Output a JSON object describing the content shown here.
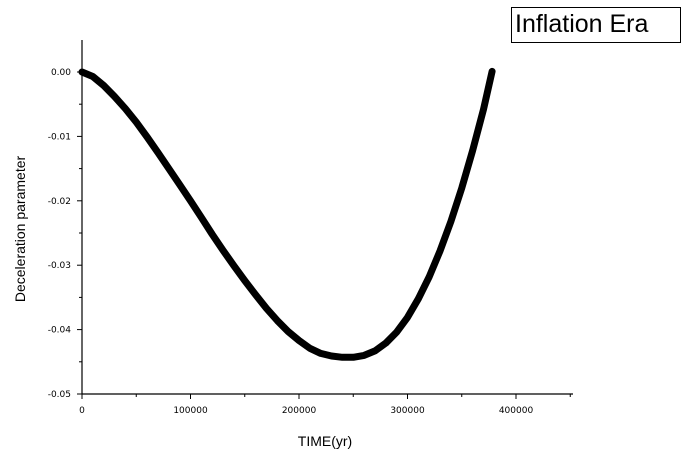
{
  "chart_data": {
    "type": "line",
    "title": "Inflation Era",
    "xlabel": "TIME(yr)",
    "ylabel": "Deceleration parameter",
    "xlim": [
      0,
      450000
    ],
    "ylim": [
      -0.05,
      0.005
    ],
    "x_ticks": [
      0,
      100000,
      200000,
      300000,
      400000
    ],
    "x_tick_labels": [
      "0",
      "100000",
      "200000",
      "300000",
      "400000"
    ],
    "y_ticks": [
      0.0,
      -0.01,
      -0.02,
      -0.03,
      -0.04,
      -0.05
    ],
    "y_tick_labels": [
      "0.00",
      "-0.01",
      "-0.02",
      "-0.03",
      "-0.04",
      "-0.05"
    ],
    "grid": false,
    "legend": "none",
    "series": [
      {
        "color": "#000000",
        "x": [
          0,
          10000,
          20000,
          30000,
          40000,
          50000,
          60000,
          70000,
          80000,
          90000,
          100000,
          110000,
          120000,
          130000,
          140000,
          150000,
          160000,
          170000,
          180000,
          190000,
          200000,
          210000,
          220000,
          230000,
          240000,
          250000,
          260000,
          270000,
          280000,
          290000,
          300000,
          310000,
          320000,
          330000,
          340000,
          350000,
          360000,
          370000,
          378000
        ],
        "values": [
          0.0,
          -0.0007,
          -0.0021,
          -0.0038,
          -0.0057,
          -0.0078,
          -0.0101,
          -0.0125,
          -0.015,
          -0.0175,
          -0.02,
          -0.0226,
          -0.0252,
          -0.0277,
          -0.0301,
          -0.0324,
          -0.0346,
          -0.0367,
          -0.0386,
          -0.0403,
          -0.0417,
          -0.0429,
          -0.0437,
          -0.0441,
          -0.0443,
          -0.0443,
          -0.044,
          -0.0433,
          -0.0421,
          -0.0404,
          -0.0381,
          -0.0352,
          -0.0318,
          -0.0278,
          -0.0232,
          -0.018,
          -0.0122,
          -0.0058,
          0.0001
        ]
      }
    ]
  }
}
